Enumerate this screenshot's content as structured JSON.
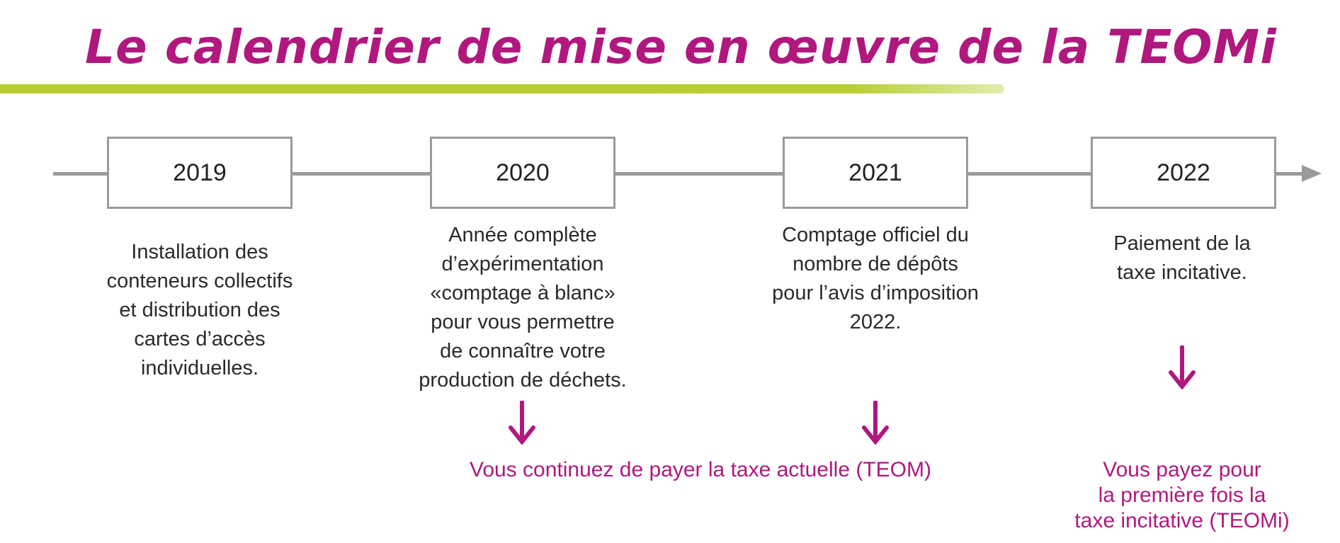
{
  "title": "Le calendrier de mise en œuvre de la TEOMi",
  "colors": {
    "accent": "#b0187e",
    "brush": "#b7cd2f",
    "timeline": "#9a9a9a"
  },
  "timeline": [
    {
      "year": "2019",
      "text": "Installation des\nconteneurs collectifs\net distribution des\ncartes d’accès\nindividuelles."
    },
    {
      "year": "2020",
      "text": "Année complète\nd’expérimentation\n«comptage à blanc»\npour vous permettre\nde connaître votre\nproduction de déchets."
    },
    {
      "year": "2021",
      "text": "Comptage officiel du\nnombre de dépôts\npour l’avis d’imposition\n2022."
    },
    {
      "year": "2022",
      "text": "Paiement de la\ntaxe incitative."
    }
  ],
  "notes": {
    "current_tax": "Vous continuez de payer la taxe actuelle (TEOM)",
    "incentive_tax": "Vous payez pour\nla première fois la\ntaxe incitative (TEOMi)"
  }
}
